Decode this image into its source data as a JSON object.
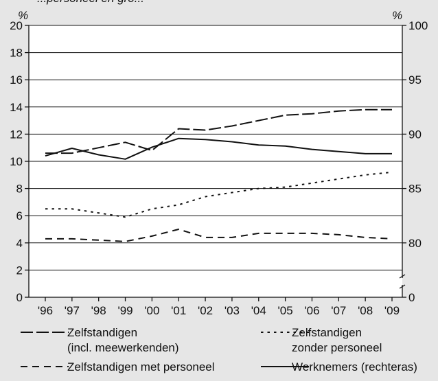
{
  "page": {
    "background": "#e6e6e6",
    "plot_background": "#ffffff"
  },
  "chart_data": {
    "type": "line",
    "title_fragment": "...personeel en gro...",
    "left_axis": {
      "unit": "%",
      "ylim": [
        0,
        20
      ],
      "ticks": [
        0,
        2,
        4,
        6,
        8,
        10,
        12,
        14,
        16,
        18,
        20
      ],
      "tick_labels": [
        "0",
        "2",
        "4",
        "6",
        "8",
        "10",
        "12",
        "14",
        "16",
        "18",
        "20"
      ]
    },
    "right_axis": {
      "unit": "%",
      "ylim_broken": [
        0,
        80,
        100
      ],
      "ticks": [
        0,
        80,
        85,
        90,
        95,
        100
      ],
      "tick_labels": [
        "0",
        "80",
        "85",
        "90",
        "95",
        "100"
      ],
      "axis_break": true
    },
    "grid": "horizontal",
    "categories": [
      "'96",
      "'97",
      "'98",
      "'99",
      "'00",
      "'01",
      "'02",
      "'03",
      "'04",
      "'05",
      "'06",
      "'07",
      "'08",
      "'09"
    ],
    "series": [
      {
        "name": "Zelfstandigen\n(incl. meewerkenden)",
        "legend_lines": [
          "Zelfstandigen",
          "(incl. meewerkenden)"
        ],
        "axis": "left",
        "style": "long-dash",
        "color": "#111111",
        "values": [
          10.6,
          10.6,
          11.0,
          11.4,
          10.8,
          12.4,
          12.3,
          12.6,
          13.0,
          13.4,
          13.5,
          13.7,
          13.8,
          13.8
        ]
      },
      {
        "name": "Zelfstandigen\nzonder personeel",
        "legend_lines": [
          "Zelfstandigen",
          "zonder personeel"
        ],
        "axis": "left",
        "style": "dotted",
        "color": "#111111",
        "values": [
          6.5,
          6.5,
          6.2,
          5.9,
          6.5,
          6.8,
          7.4,
          7.7,
          8.0,
          8.1,
          8.4,
          8.7,
          9.0,
          9.2
        ]
      },
      {
        "name": "Zelfstandigen met personeel",
        "legend_lines": [
          "Zelfstandigen met personeel"
        ],
        "axis": "left",
        "style": "medium-dash",
        "color": "#111111",
        "values": [
          4.3,
          4.3,
          4.2,
          4.1,
          4.5,
          5.0,
          4.4,
          4.4,
          4.7,
          4.7,
          4.7,
          4.6,
          4.4,
          4.3
        ]
      },
      {
        "name": "Werknemers (rechteras)",
        "legend_lines": [
          "Werknemers (rechteras)"
        ],
        "axis": "right",
        "style": "solid",
        "color": "#111111",
        "values": [
          88.0,
          88.7,
          88.1,
          87.7,
          88.8,
          89.6,
          89.5,
          89.3,
          89.0,
          88.9,
          88.6,
          88.4,
          88.2,
          88.2
        ]
      }
    ],
    "legend": {
      "placement": "bottom",
      "entries": [
        {
          "series": 0
        },
        {
          "series": 1
        },
        {
          "series": 2
        },
        {
          "series": 3
        }
      ]
    }
  }
}
